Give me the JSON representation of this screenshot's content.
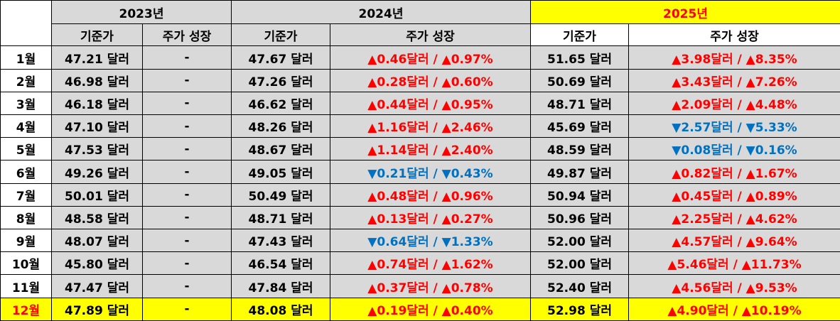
{
  "table": {
    "years": [
      "2023년",
      "2024년",
      "2025년"
    ],
    "subheaders": [
      "기준가",
      "주가 성장",
      "기준가",
      "주가 성장",
      "기준가",
      "주가 성장"
    ],
    "rows": [
      {
        "cells": [
          "1월",
          "47.21 달러",
          "-",
          "47.67 달러",
          "▲0.46달러 / ▲0.97%",
          "51.65 달러",
          "▲3.98달러 / ▲8.35%"
        ],
        "colors": [
          "#ff0000",
          "#ff0000"
        ]
      },
      {
        "cells": [
          "2월",
          "46.98 달러",
          "-",
          "47.26 달러",
          "▲0.28달러 / ▲0.60%",
          "50.69 달러",
          "▲3.43달러 / ▲7.26%"
        ],
        "colors": [
          "#ff0000",
          "#ff0000"
        ]
      },
      {
        "cells": [
          "3월",
          "46.18 달러",
          "-",
          "46.62 달러",
          "▲0.44달러 / ▲0.95%",
          "48.71 달러",
          "▲2.09달러 / ▲4.48%"
        ],
        "colors": [
          "#ff0000",
          "#ff0000"
        ]
      },
      {
        "cells": [
          "4월",
          "47.10 달러",
          "-",
          "48.26 달러",
          "▲1.16달러 / ▲2.46%",
          "45.69 달러",
          "▼2.57달러 / ▼5.33%"
        ],
        "colors": [
          "#ff0000",
          "#0070c0"
        ]
      },
      {
        "cells": [
          "5월",
          "47.53 달러",
          "-",
          "48.67 달러",
          "▲1.14달러 / ▲2.40%",
          "48.59 달러",
          "▼0.08달러 / ▼0.16%"
        ],
        "colors": [
          "#ff0000",
          "#0070c0"
        ]
      },
      {
        "cells": [
          "6월",
          "49.26 달러",
          "-",
          "49.05 달러",
          "▼0.21달러 / ▼0.43%",
          "49.87 달러",
          "▲0.82달러 / ▲1.67%"
        ],
        "colors": [
          "#0070c0",
          "#ff0000"
        ]
      },
      {
        "cells": [
          "7월",
          "50.01 달러",
          "-",
          "50.49 달러",
          "▲0.48달러 / ▲0.96%",
          "50.94 달러",
          "▲0.45달러 / ▲0.89%"
        ],
        "colors": [
          "#ff0000",
          "#ff0000"
        ]
      },
      {
        "cells": [
          "8월",
          "48.58 달러",
          "-",
          "48.71 달러",
          "▲0.13달러 / ▲0.27%",
          "50.96 달러",
          "▲2.25달러 / ▲4.62%"
        ],
        "colors": [
          "#ff0000",
          "#ff0000"
        ]
      },
      {
        "cells": [
          "9월",
          "48.07 달러",
          "-",
          "47.43 달러",
          "▼0.64달러 / ▼1.33%",
          "52.00 달러",
          "▲4.57달러 / ▲9.64%"
        ],
        "colors": [
          "#0070c0",
          "#ff0000"
        ]
      },
      {
        "cells": [
          "10월",
          "45.80 달러",
          "-",
          "46.54 달러",
          "▲0.74달러 / ▲1.62%",
          "52.00 달러",
          "▲5.46달러 / ▲11.73%"
        ],
        "colors": [
          "#ff0000",
          "#ff0000"
        ]
      },
      {
        "cells": [
          "11월",
          "47.47 달러",
          "-",
          "47.84 달러",
          "▲0.37달러 / ▲0.78%",
          "52.40 달러",
          "▲4.56달러 / ▲9.53%"
        ],
        "colors": [
          "#ff0000",
          "#ff0000"
        ]
      },
      {
        "cells": [
          "12월",
          "47.89 달러",
          "-",
          "48.08 달러",
          "▲0.19달러 / ▲0.40%",
          "52.98 달러",
          "▲4.90달러 / ▲10.19%"
        ],
        "colors": [
          "#ff0000",
          "#ff0000"
        ]
      }
    ]
  }
}
